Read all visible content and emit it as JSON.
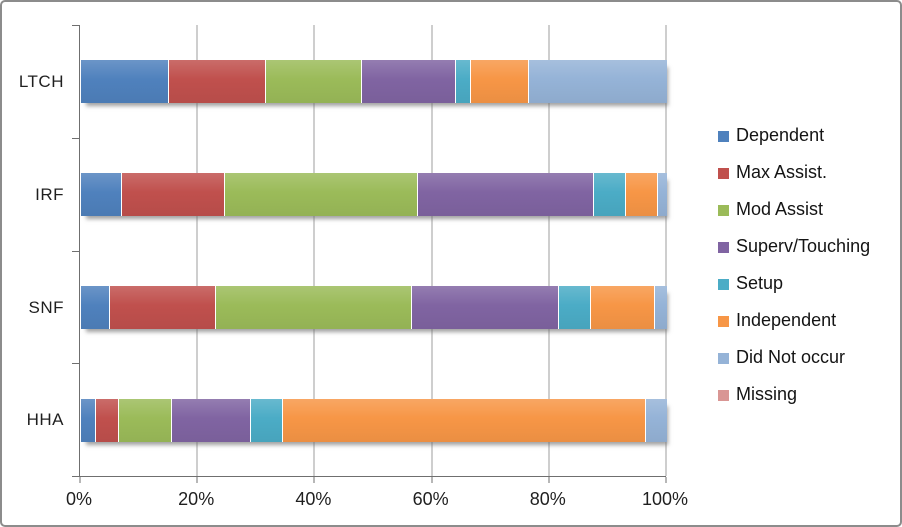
{
  "window": {
    "background": "#FFFFFF",
    "frame_border_color": "#8C8C8C",
    "axis_color": "#6F6F6F",
    "gridline_color": "#9E9E9E",
    "text_color": "#1F1F1F"
  },
  "chart_data": {
    "type": "bar",
    "orientation": "horizontal",
    "stacked": true,
    "title": "",
    "xlabel": "",
    "ylabel": "",
    "xlim": [
      0,
      100
    ],
    "grid": true,
    "legend_position": "right",
    "categories": [
      "LTCH",
      "IRF",
      "SNF",
      "HHA"
    ],
    "x_ticks": [
      "0%",
      "20%",
      "40%",
      "60%",
      "80%",
      "100%"
    ],
    "x_tick_values": [
      0,
      20,
      40,
      60,
      80,
      100
    ],
    "series": [
      {
        "name": "Dependent",
        "color": "#4F81BD",
        "values": [
          15.0,
          7.0,
          5.0,
          2.5
        ]
      },
      {
        "name": "Max Assist.",
        "color": "#C0504D",
        "values": [
          16.5,
          17.5,
          18.0,
          4.0
        ]
      },
      {
        "name": "Mod Assist",
        "color": "#9BBB59",
        "values": [
          16.5,
          33.0,
          33.5,
          9.0
        ]
      },
      {
        "name": "Superv/Touching",
        "color": "#8064A2",
        "values": [
          16.0,
          30.0,
          25.0,
          13.5
        ]
      },
      {
        "name": "Setup",
        "color": "#4BACC6",
        "values": [
          2.5,
          5.5,
          5.5,
          5.5
        ]
      },
      {
        "name": "Independent",
        "color": "#F79646",
        "values": [
          10.0,
          5.5,
          11.0,
          62.0
        ]
      },
      {
        "name": "Did Not occur",
        "color": "#95B3D7",
        "values": [
          23.5,
          1.5,
          2.0,
          3.5
        ]
      },
      {
        "name": "Missing",
        "color": "#D99694",
        "values": [
          0.0,
          0.0,
          0.0,
          0.0
        ]
      }
    ]
  }
}
